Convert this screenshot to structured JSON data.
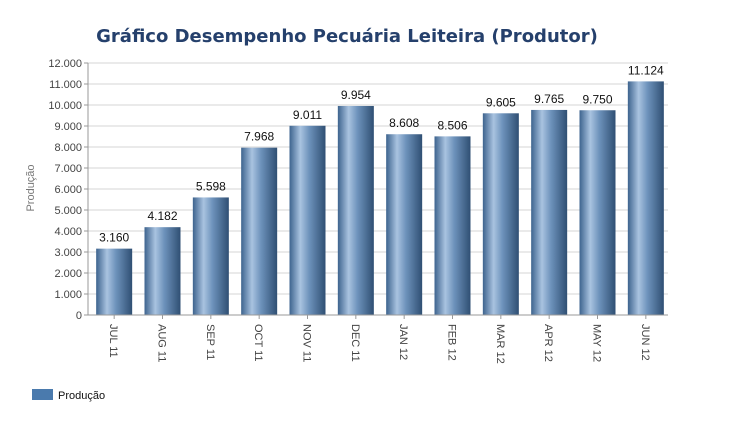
{
  "chart_data": {
    "type": "bar",
    "title": "Gráfico Desempenho Pecuária Leiteira (Produtor)",
    "ylabel": "Produção",
    "xlabel": "",
    "categories": [
      "JUL 11",
      "AUG 11",
      "SEP 11",
      "OCT 11",
      "NOV 11",
      "DEC 11",
      "JAN 12",
      "FEB 12",
      "MAR 12",
      "APR 12",
      "MAY 12",
      "JUN 12"
    ],
    "series": [
      {
        "name": "Produção",
        "values": [
          3160,
          4182,
          5598,
          7968,
          9011,
          9954,
          8608,
          8506,
          9605,
          9765,
          9750,
          11124
        ],
        "labels": [
          "3.160",
          "4.182",
          "5.598",
          "7.968",
          "9.011",
          "9.954",
          "8.608",
          "8.506",
          "9.605",
          "9.765",
          "9.750",
          "11.124"
        ]
      }
    ],
    "ylim": [
      0,
      12000
    ],
    "yticks": [
      0,
      1000,
      2000,
      3000,
      4000,
      5000,
      6000,
      7000,
      8000,
      9000,
      10000,
      11000,
      12000
    ],
    "ytick_labels": [
      "0",
      "1.000",
      "2.000",
      "3.000",
      "4.000",
      "5.000",
      "6.000",
      "7.000",
      "8.000",
      "9.000",
      "10.000",
      "11.000",
      "12.000"
    ],
    "grid": true,
    "legend_position": "bottom-left",
    "colors": {
      "bar_dark": "#2f4f73",
      "bar_light": "#a9c3e0",
      "legend": "#4a7aad",
      "title": "#25406c"
    }
  }
}
